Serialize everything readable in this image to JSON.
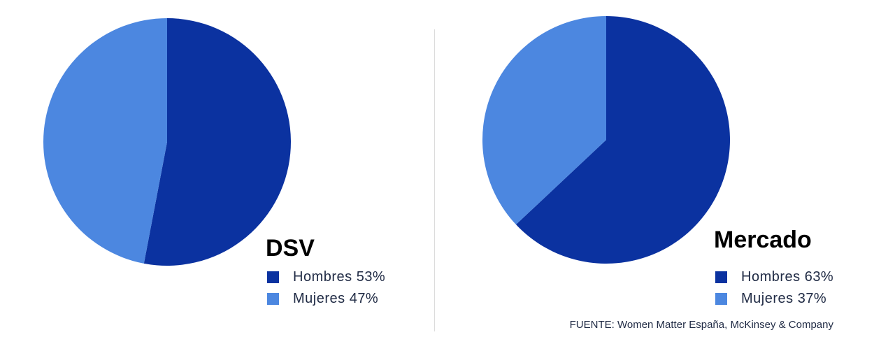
{
  "chart_data": [
    {
      "type": "pie",
      "title": "DSV",
      "slices": [
        {
          "label": "Hombres 53%",
          "value": 53,
          "color": "#0b32a0"
        },
        {
          "label": "Mujeres 47%",
          "value": 47,
          "color": "#4c87e0"
        }
      ]
    },
    {
      "type": "pie",
      "title": "Mercado",
      "slices": [
        {
          "label": "Hombres 63%",
          "value": 63,
          "color": "#0b32a0"
        },
        {
          "label": "Mujeres 37%",
          "value": 37,
          "color": "#4c87e0"
        }
      ]
    }
  ],
  "source": "FUENTE: Women Matter España, McKinsey & Company"
}
